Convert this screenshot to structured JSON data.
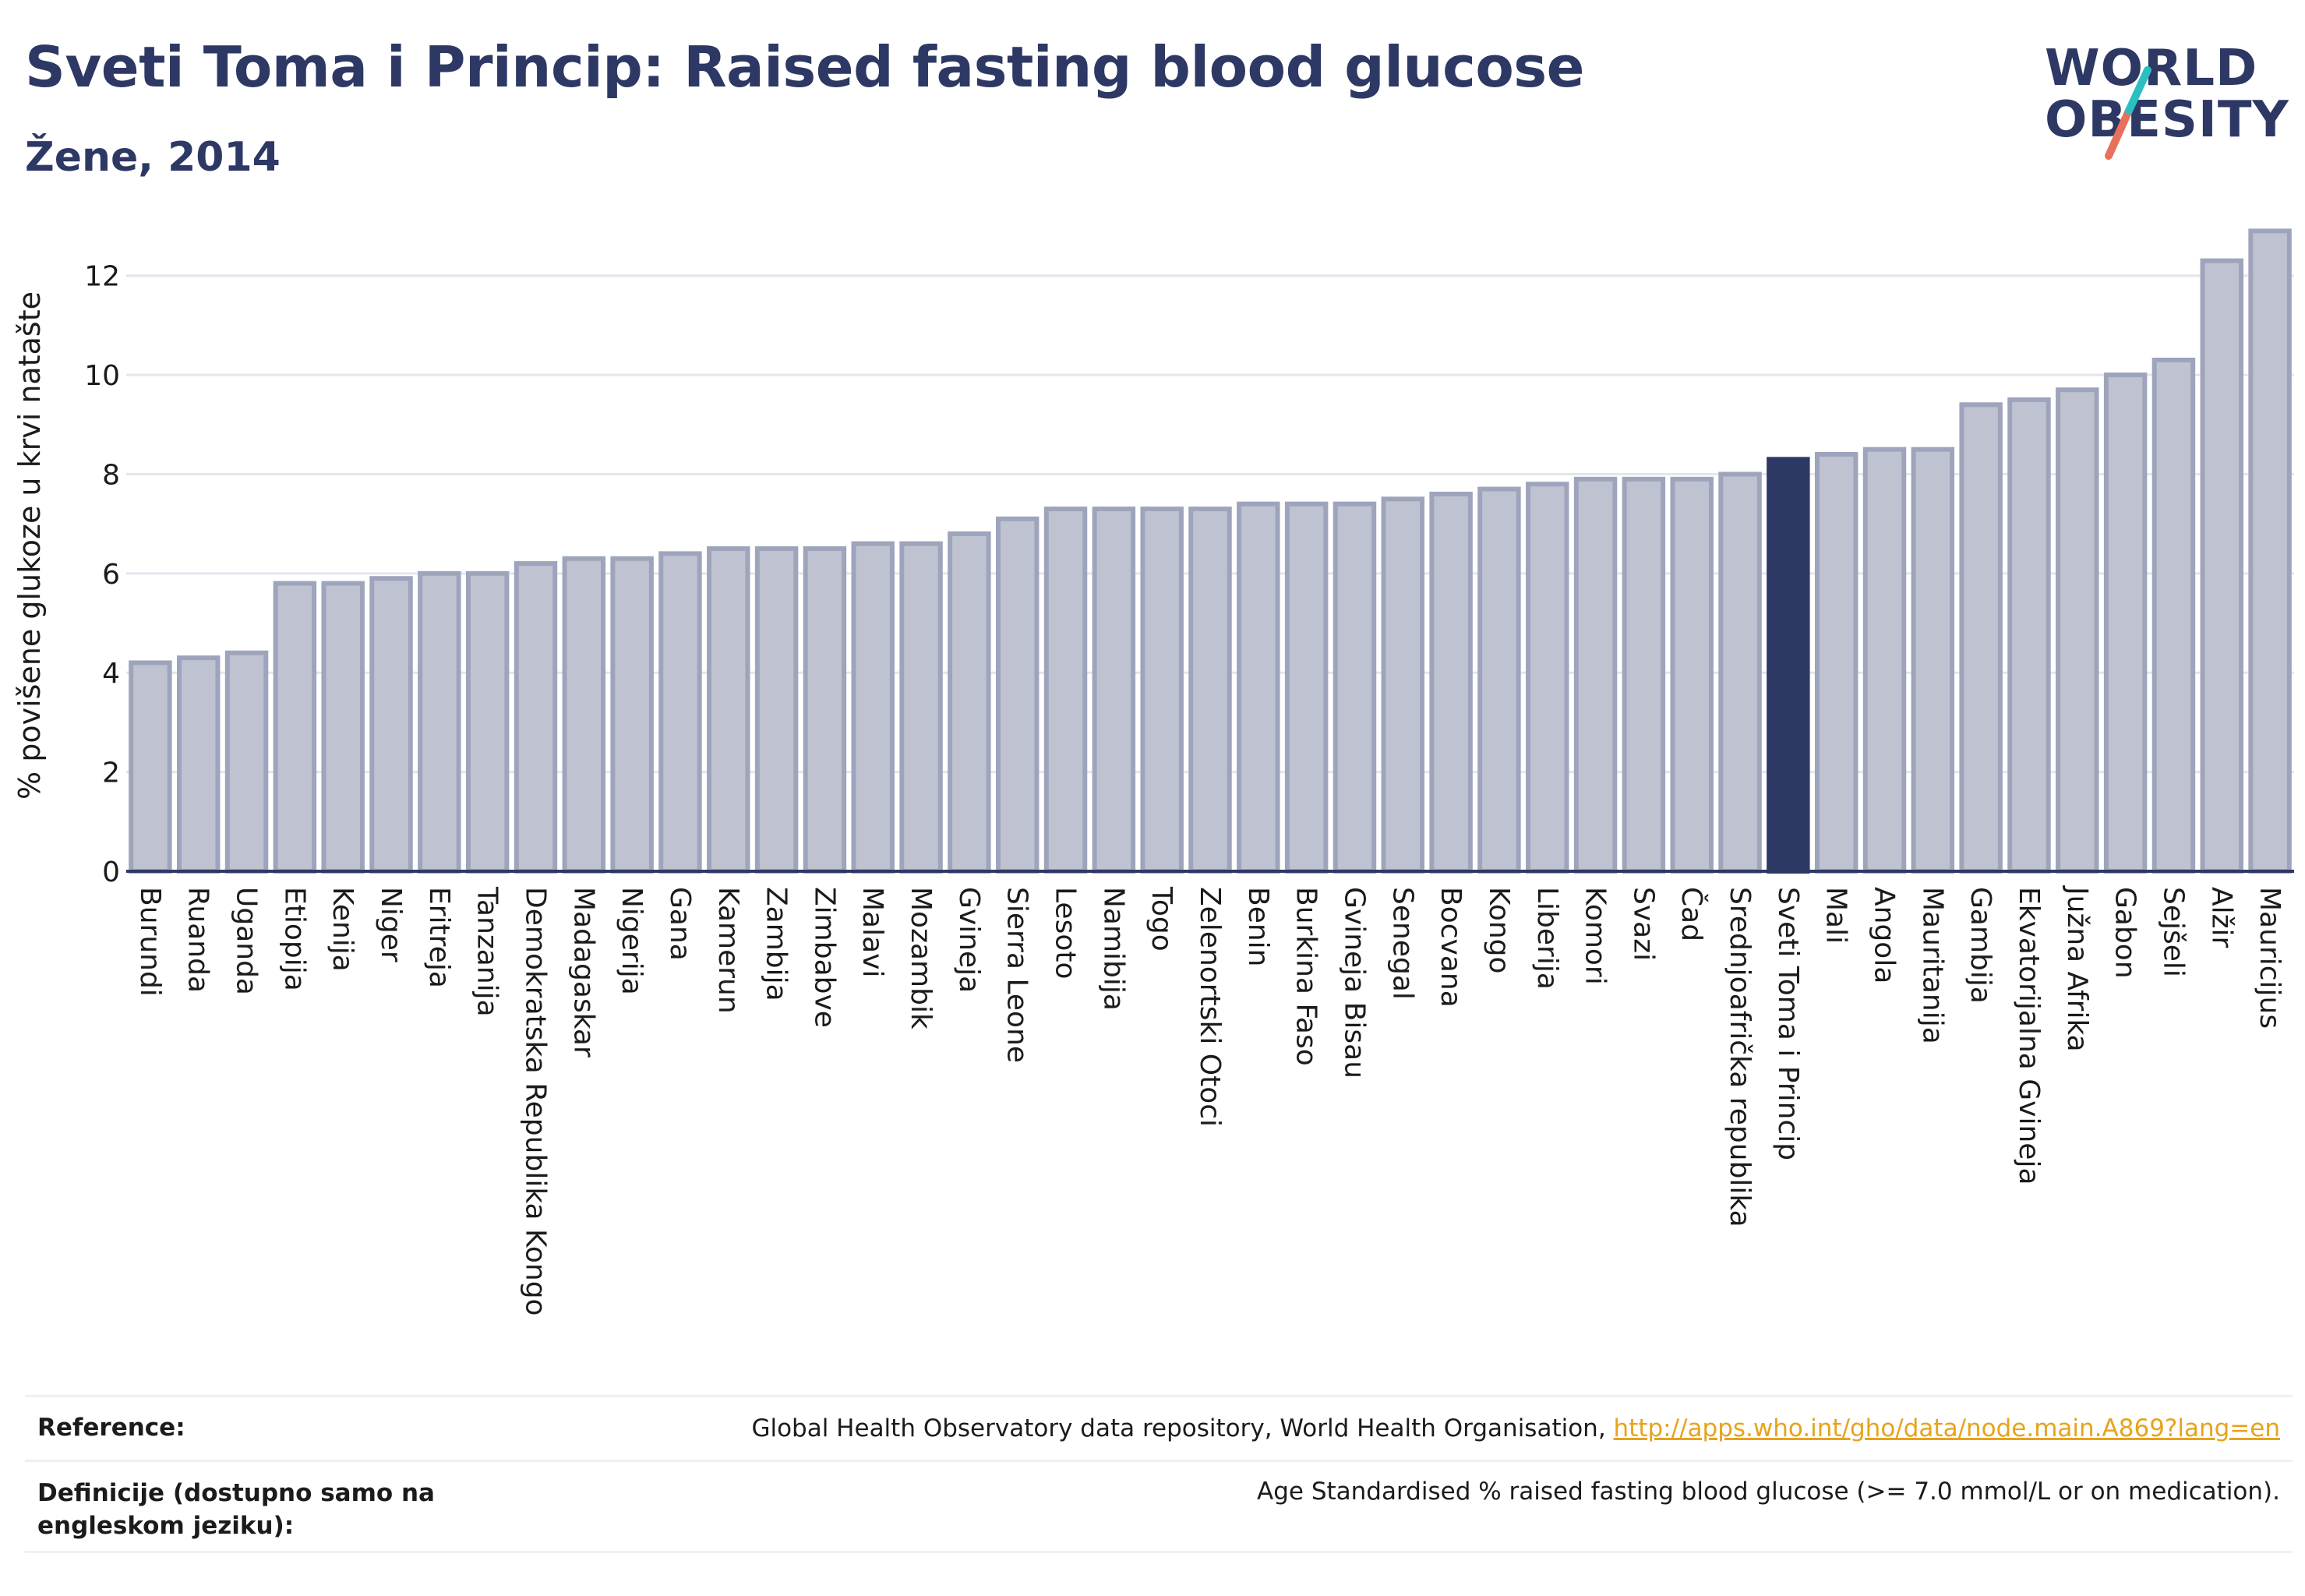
{
  "header": {
    "title": "Sveti Toma i Princip: Raised fasting blood glucose",
    "subtitle": "Žene, 2014"
  },
  "logo": {
    "line1": "WORLD",
    "line2": "OBESITY"
  },
  "colors": {
    "bar": "#bfc3d1",
    "bar_stroke": "#9ea4bb",
    "highlight": "#2d3864",
    "grid": "#e4e6ee",
    "title": "#2d3864",
    "logo_teal": "#2bbfc0",
    "logo_coral": "#e8705c",
    "link": "#e7a31b"
  },
  "chart_data": {
    "type": "bar",
    "title": "Sveti Toma i Princip: Raised fasting blood glucose",
    "subtitle": "Žene, 2014",
    "xlabel": "",
    "ylabel": "% povišene glukoze u krvi natašte",
    "ylim": [
      0,
      13
    ],
    "yticks": [
      0,
      2,
      4,
      6,
      8,
      10,
      12
    ],
    "grid": true,
    "highlight": "Sveti Toma i Princip",
    "categories": [
      "Burundi",
      "Ruanda",
      "Uganda",
      "Etiopija",
      "Kenija",
      "Niger",
      "Eritreja",
      "Tanzanija",
      "Demokratska Republika Kongo",
      "Madagaskar",
      "Nigerija",
      "Gana",
      "Kamerun",
      "Zambija",
      "Zimbabve",
      "Malavi",
      "Mozambik",
      "Gvineja",
      "Sierra Leone",
      "Lesoto",
      "Namibija",
      "Togo",
      "Zelenortski Otoci",
      "Benin",
      "Burkina Faso",
      "Gvineja Bisau",
      "Senegal",
      "Bocvana",
      "Kongo",
      "Liberija",
      "Komori",
      "Svazi",
      "Čad",
      "Srednjoafrička republika",
      "Sveti Toma i Princip",
      "Mali",
      "Angola",
      "Mauritanija",
      "Gambija",
      "Ekvatorijalna Gvineja",
      "Južna Afrika",
      "Gabon",
      "Sejšeli",
      "Alžir",
      "Mauricijus"
    ],
    "values": [
      4.2,
      4.3,
      4.4,
      5.8,
      5.8,
      5.9,
      6.0,
      6.0,
      6.2,
      6.3,
      6.3,
      6.4,
      6.5,
      6.5,
      6.5,
      6.6,
      6.6,
      6.8,
      7.1,
      7.3,
      7.3,
      7.3,
      7.3,
      7.4,
      7.4,
      7.4,
      7.5,
      7.6,
      7.7,
      7.8,
      7.9,
      7.9,
      7.9,
      8.0,
      8.3,
      8.4,
      8.5,
      8.5,
      9.4,
      9.5,
      9.7,
      10.0,
      10.3,
      12.3,
      12.9
    ]
  },
  "footer": {
    "reference_label": "Reference:",
    "reference_text": "Global Health Observatory data repository, World Health Organisation,",
    "reference_link": "http://apps.who.int/gho/data/node.main.A869?lang=en",
    "definition_label": "Definicije (dostupno samo na engleskom jeziku):",
    "definition_text": "Age Standardised % raised fasting blood glucose (>= 7.0 mmol/L or on medication)."
  }
}
